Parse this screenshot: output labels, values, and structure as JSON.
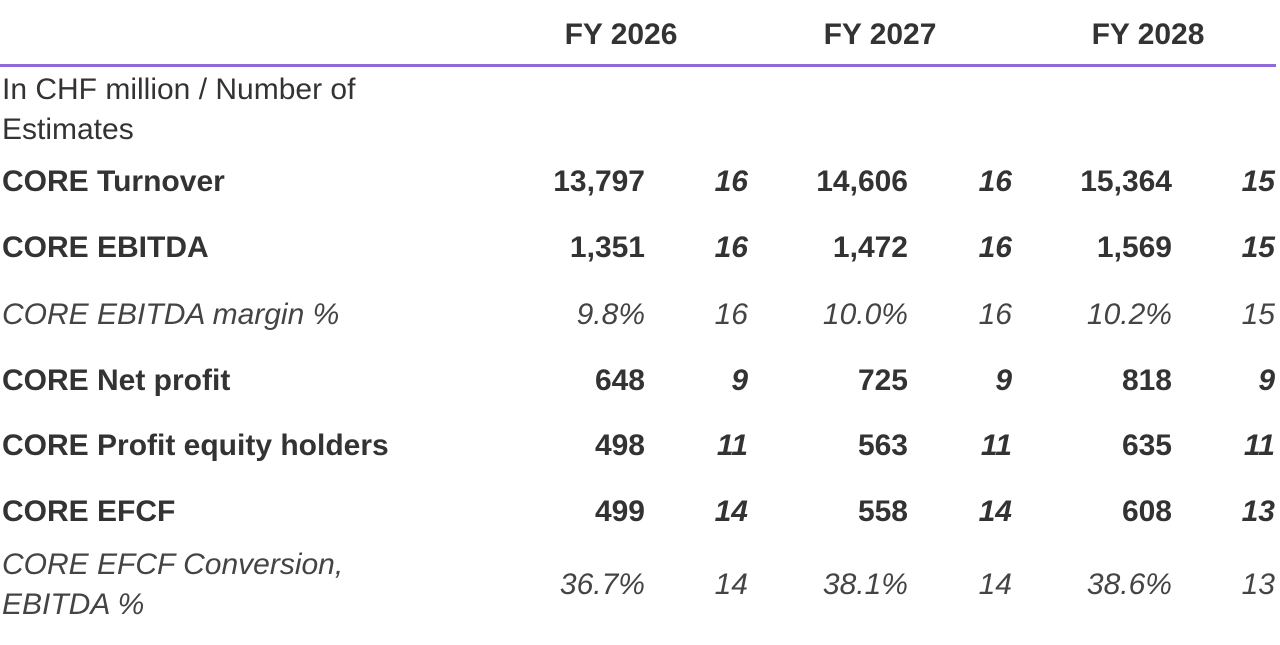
{
  "table": {
    "columns": [
      "FY 2026",
      "FY 2027",
      "FY 2028"
    ],
    "unit_label": "In CHF million / Number of Estimates",
    "rows": [
      {
        "label": "CORE Turnover",
        "cells": [
          "13,797",
          "16",
          "14,606",
          "16",
          "15,364",
          "15"
        ]
      },
      {
        "label": "CORE EBITDA",
        "cells": [
          "1,351",
          "16",
          "1,472",
          "16",
          "1,569",
          "15"
        ]
      },
      {
        "label": "CORE EBITDA margin %",
        "cells": [
          "9.8%",
          "16",
          "10.0%",
          "16",
          "10.2%",
          "15"
        ]
      },
      {
        "label": "CORE Net profit",
        "cells": [
          "648",
          "9",
          "725",
          "9",
          "818",
          "9"
        ]
      },
      {
        "label": "CORE Profit equity holders",
        "cells": [
          "498",
          "11",
          "563",
          "11",
          "635",
          "11"
        ]
      },
      {
        "label": "CORE EFCF",
        "cells": [
          "499",
          "14",
          "558",
          "14",
          "608",
          "13"
        ]
      },
      {
        "label": "CORE EFCF Conversion, EBITDA %",
        "cells": [
          "36.7%",
          "14",
          "38.1%",
          "14",
          "38.6%",
          "13"
        ]
      }
    ]
  }
}
